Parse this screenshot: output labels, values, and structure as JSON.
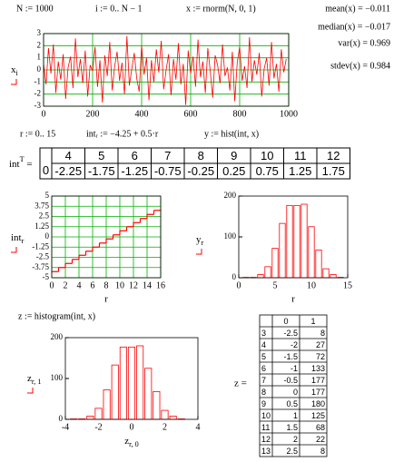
{
  "formulas": {
    "top": [
      "N := 1000",
      "i := 0.. N − 1",
      "x := rnorm(N, 0, 1)"
    ],
    "stats": [
      "mean(x) = −0.011",
      "median(x) = −0.017",
      "var(x) = 0.969",
      "stdev(x) = 0.984"
    ],
    "middle": [
      "r := 0.. 15",
      "intᵣ := −4.25 + 0.5·r",
      "y := hist(int, x)"
    ],
    "z_def": "z := histogram(int, x)"
  },
  "tables": {
    "int": {
      "label": {
        "base": "int",
        "sup": "T",
        "rest": " ="
      },
      "columns": [
        4,
        5,
        6,
        7,
        8,
        9,
        10,
        11,
        12
      ],
      "row_label": 0,
      "row": [
        -2.25,
        -1.75,
        -1.25,
        -0.75,
        -0.25,
        0.25,
        0.75,
        1.25,
        1.75
      ]
    },
    "z": {
      "label": "z =",
      "columns": [
        0,
        1
      ],
      "row_index": [
        3,
        4,
        5,
        6,
        7,
        8,
        9,
        10,
        11,
        12,
        13
      ],
      "rows": [
        [
          -2.5,
          8
        ],
        [
          -2,
          27
        ],
        [
          -1.5,
          72
        ],
        [
          -1,
          133
        ],
        [
          -0.5,
          177
        ],
        [
          0,
          177
        ],
        [
          0.5,
          180
        ],
        [
          1,
          125
        ],
        [
          1.5,
          68
        ],
        [
          2,
          22
        ],
        [
          2.5,
          8
        ]
      ]
    }
  },
  "chart_data": [
    {
      "type": "line",
      "ylabel": {
        "base": "x",
        "sub": "i"
      },
      "color": "#ff0000",
      "grid": true,
      "grid_color": "#00b000",
      "x": [
        0,
        10,
        20,
        30,
        40,
        50,
        60,
        70,
        80,
        90,
        100,
        110,
        120,
        130,
        140,
        150,
        160,
        170,
        180,
        190,
        200,
        210,
        220,
        230,
        240,
        250,
        260,
        270,
        280,
        290,
        300,
        310,
        320,
        330,
        340,
        350,
        360,
        370,
        380,
        390,
        400,
        410,
        420,
        430,
        440,
        450,
        460,
        470,
        480,
        490,
        500,
        510,
        520,
        530,
        540,
        550,
        560,
        570,
        580,
        590,
        600,
        610,
        620,
        630,
        640,
        650,
        660,
        670,
        680,
        690,
        700,
        710,
        720,
        730,
        740,
        750,
        760,
        770,
        780,
        790,
        800,
        810,
        820,
        830,
        840,
        850,
        860,
        870,
        880,
        890,
        900,
        910,
        920,
        930,
        940,
        950,
        960,
        970,
        980,
        990
      ],
      "values": [
        0.5,
        -1.2,
        1.8,
        -0.3,
        2.1,
        -1.9,
        0.7,
        -0.8,
        1.3,
        -2.4,
        0.2,
        1.1,
        -1.5,
        2.6,
        -0.6,
        0.9,
        -1.1,
        1.6,
        -2.2,
        0.4,
        -0.1,
        1.9,
        -1.4,
        0.8,
        -2.7,
        1.2,
        -0.5,
        2.3,
        -1.7,
        0.3,
        1.5,
        -0.9,
        0.6,
        -2.0,
        2.8,
        -1.3,
        0.1,
        1.4,
        -0.7,
        -1.8,
        2.0,
        -0.4,
        1.0,
        -2.5,
        0.8,
        -1.0,
        1.7,
        -0.2,
        2.4,
        -1.6,
        0.0,
        1.3,
        -2.1,
        0.9,
        -0.8,
        2.2,
        -1.2,
        0.5,
        -2.9,
        1.6,
        -0.3,
        1.1,
        -1.4,
        2.5,
        -0.6,
        0.7,
        -1.9,
        1.8,
        -0.1,
        -2.3,
        1.2,
        0.4,
        -1.1,
        2.1,
        -0.5,
        0.2,
        -1.7,
        1.5,
        -2.6,
        0.6,
        1.9,
        -0.9,
        0.3,
        -1.5,
        2.7,
        -1.0,
        0.8,
        -0.4,
        1.4,
        -2.2,
        0.1,
        1.0,
        -1.3,
        2.3,
        -0.7,
        0.5,
        -1.8,
        1.7,
        -0.2,
        0.9
      ],
      "xlim": [
        0,
        1000
      ],
      "xticks": [
        0,
        200,
        400,
        600,
        800,
        1000
      ],
      "ylim": [
        -3,
        3
      ],
      "yticks": [
        -3,
        -2,
        -1,
        0,
        1,
        2,
        3
      ]
    },
    {
      "type": "step",
      "xlabel": "r",
      "ylabel": {
        "base": "int",
        "sub": "r"
      },
      "color": "#ff0000",
      "grid": true,
      "grid_color": "#00b000",
      "x": [
        0,
        1,
        2,
        3,
        4,
        5,
        6,
        7,
        8,
        9,
        10,
        11,
        12,
        13,
        14,
        15
      ],
      "values": [
        -4.25,
        -3.75,
        -3.25,
        -2.75,
        -2.25,
        -1.75,
        -1.25,
        -0.75,
        -0.25,
        0.25,
        0.75,
        1.25,
        1.75,
        2.25,
        2.75,
        3.25
      ],
      "xlim": [
        0,
        16
      ],
      "xticks": [
        0,
        2,
        4,
        6,
        8,
        10,
        12,
        14,
        16
      ],
      "ylim": [
        -5,
        5
      ],
      "yticks": [
        -5,
        -3.75,
        -2.5,
        -1.25,
        0,
        1.25,
        2.5,
        3.75,
        5
      ]
    },
    {
      "type": "bar",
      "xlabel": "r",
      "ylabel": {
        "base": "y",
        "sub": "r"
      },
      "color": "#ff0000",
      "grid": false,
      "x": [
        0,
        1,
        2,
        3,
        4,
        5,
        6,
        7,
        8,
        9,
        10,
        11,
        12,
        13,
        14
      ],
      "values": [
        0,
        1,
        1,
        8,
        27,
        72,
        133,
        177,
        177,
        180,
        125,
        68,
        22,
        8,
        1
      ],
      "xlim": [
        0,
        15
      ],
      "xticks": [
        0,
        5,
        10,
        15
      ],
      "ylim": [
        0,
        200
      ],
      "yticks": [
        0,
        100,
        200
      ]
    },
    {
      "type": "bar",
      "xlabel": {
        "base": "z",
        "sub": "r, 0"
      },
      "ylabel": {
        "base": "z",
        "sub": "r, 1"
      },
      "color": "#ff0000",
      "grid": false,
      "x": [
        -4,
        -3.5,
        -3,
        -2.5,
        -2,
        -1.5,
        -1,
        -0.5,
        0,
        0.5,
        1,
        1.5,
        2,
        2.5,
        3
      ],
      "values": [
        0,
        1,
        1,
        8,
        27,
        72,
        133,
        177,
        177,
        180,
        125,
        68,
        22,
        8,
        1
      ],
      "xlim": [
        -4,
        4
      ],
      "xticks": [
        -4,
        -2,
        0,
        2,
        4
      ],
      "ylim": [
        0,
        200
      ],
      "yticks": [
        0,
        100,
        200
      ]
    }
  ]
}
